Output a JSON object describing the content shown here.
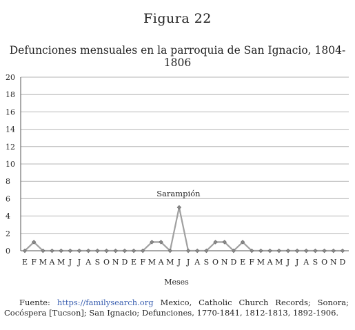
{
  "figure_label": "Figura 22",
  "source": {
    "prefix": "Fuente:",
    "link": "https://familysearch.org",
    "rest": "Mexico, Catholic Church Records; Sonora; Cocóspera [Tucson]; San Ignacio; Defunciones, 1770-1841, 1812-1813, 1892-1906."
  },
  "chart_data": {
    "type": "line",
    "title": "Defunciones mensuales en la parroquia de San Ignacio, 1804-1806",
    "xlabel": "Meses",
    "ylabel": "",
    "ylim": [
      0,
      20
    ],
    "y_ticks": [
      0,
      2,
      4,
      6,
      8,
      10,
      12,
      14,
      16,
      18,
      20
    ],
    "grid": true,
    "legend": "none",
    "line_color": "#a0a0a0",
    "categories": [
      "E",
      "F",
      "M",
      "A",
      "M",
      "J",
      "J",
      "A",
      "S",
      "O",
      "N",
      "D",
      "E",
      "F",
      "M",
      "A",
      "M",
      "J",
      "J",
      "A",
      "S",
      "O",
      "N",
      "D",
      "E",
      "F",
      "M",
      "A",
      "M",
      "J",
      "J",
      "A",
      "S",
      "O",
      "N",
      "D"
    ],
    "series": [
      {
        "values": [
          0,
          1,
          0,
          0,
          0,
          0,
          0,
          0,
          0,
          0,
          0,
          0,
          0,
          0,
          1,
          1,
          0,
          5,
          0,
          0,
          0,
          1,
          1,
          0,
          1,
          0,
          0,
          0,
          0,
          0,
          0,
          0,
          0,
          0,
          0,
          0
        ]
      }
    ],
    "annotations": [
      {
        "text": "Sarampión",
        "x_index": 17,
        "y": 5
      }
    ]
  }
}
